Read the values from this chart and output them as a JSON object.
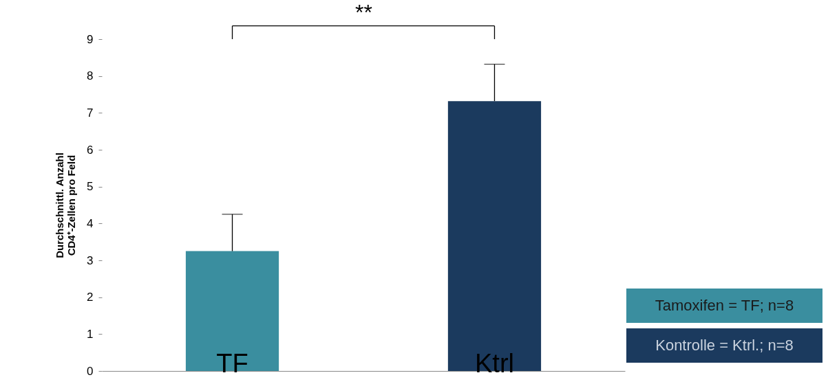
{
  "chart_data": {
    "type": "bar",
    "ylabel": "Durchschnittl. Anzahl\nCD4⁺-Zellen pro Feld",
    "categories": [
      "TF",
      "Ktrl"
    ],
    "values": [
      3.25,
      7.32
    ],
    "colors": [
      "#3a8e9f",
      "#1b3a5e"
    ],
    "errors": [
      [
        3.25,
        4.25
      ],
      [
        7.32,
        8.32
      ]
    ],
    "ylim": [
      0,
      9
    ],
    "yticks": [
      0,
      1,
      2,
      3,
      4,
      5,
      6,
      7,
      8,
      9
    ],
    "grid": false,
    "annotations": [
      "**",
      "Tamoxifen = TF; n=8",
      "Kontrolle = Ktrl.; n=8"
    ]
  }
}
